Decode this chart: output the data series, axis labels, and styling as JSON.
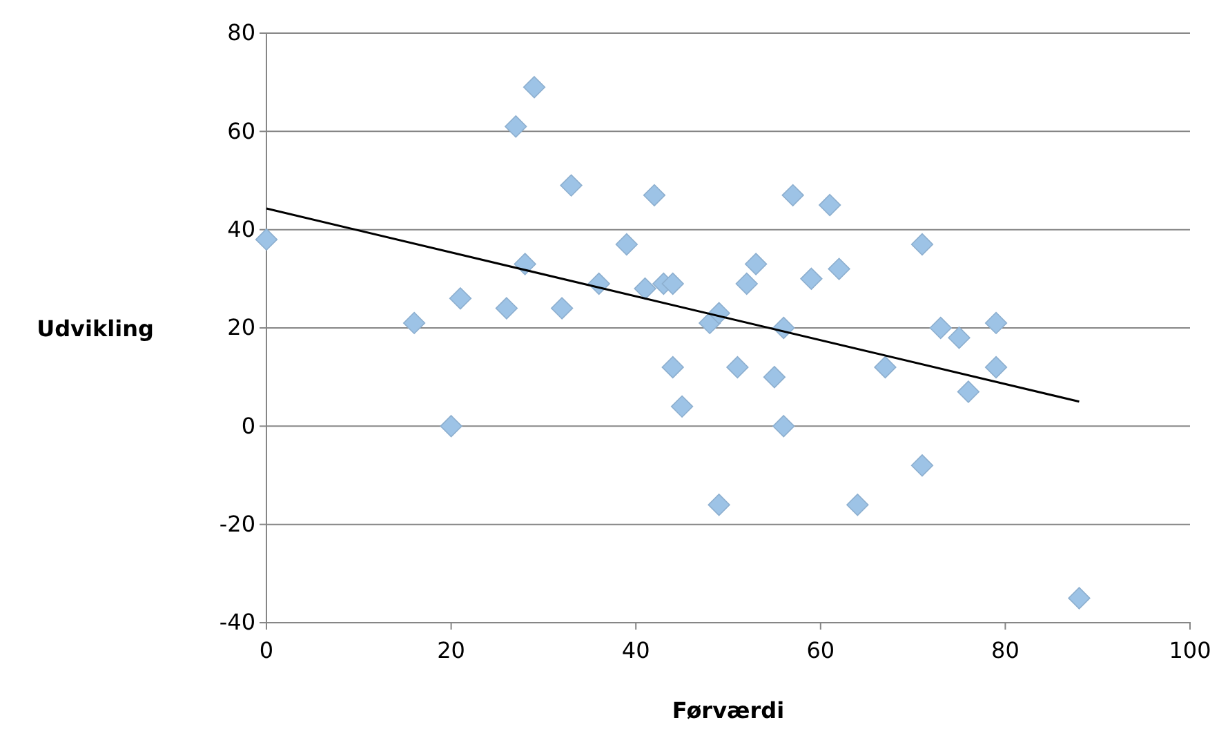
{
  "chart_data": {
    "type": "scatter",
    "xlabel": "Førværdi",
    "ylabel": "Udvikling",
    "xlim": [
      0,
      100
    ],
    "xticks": [
      0,
      20,
      40,
      60,
      80,
      100
    ],
    "ylim": [
      -40,
      80
    ],
    "yticks": [
      -40,
      -20,
      0,
      20,
      40,
      60,
      80
    ],
    "grid": "y",
    "marker": "diamond",
    "series": [
      {
        "color": "#9dc3e6",
        "x": [
          0,
          16,
          20,
          21,
          26,
          27,
          28,
          29,
          32,
          33,
          36,
          39,
          41,
          42,
          43,
          44,
          44,
          45,
          48,
          49,
          49,
          51,
          52,
          53,
          55,
          56,
          56,
          57,
          59,
          61,
          62,
          64,
          67,
          71,
          71,
          73,
          75,
          76,
          79,
          79,
          88
        ],
        "values": [
          38,
          21,
          0,
          26,
          24,
          61,
          33,
          69,
          24,
          49,
          29,
          37,
          28,
          47,
          29,
          29,
          12,
          4,
          21,
          23,
          -16,
          12,
          29,
          33,
          10,
          20,
          0,
          47,
          30,
          45,
          32,
          -16,
          12,
          37,
          -8,
          20,
          18,
          7,
          21,
          12,
          -35
        ]
      },
      {
        "type": "line",
        "color": "#000000",
        "x": [
          0,
          88
        ],
        "values": [
          44.3,
          5
        ],
        "marker": "none"
      }
    ]
  }
}
